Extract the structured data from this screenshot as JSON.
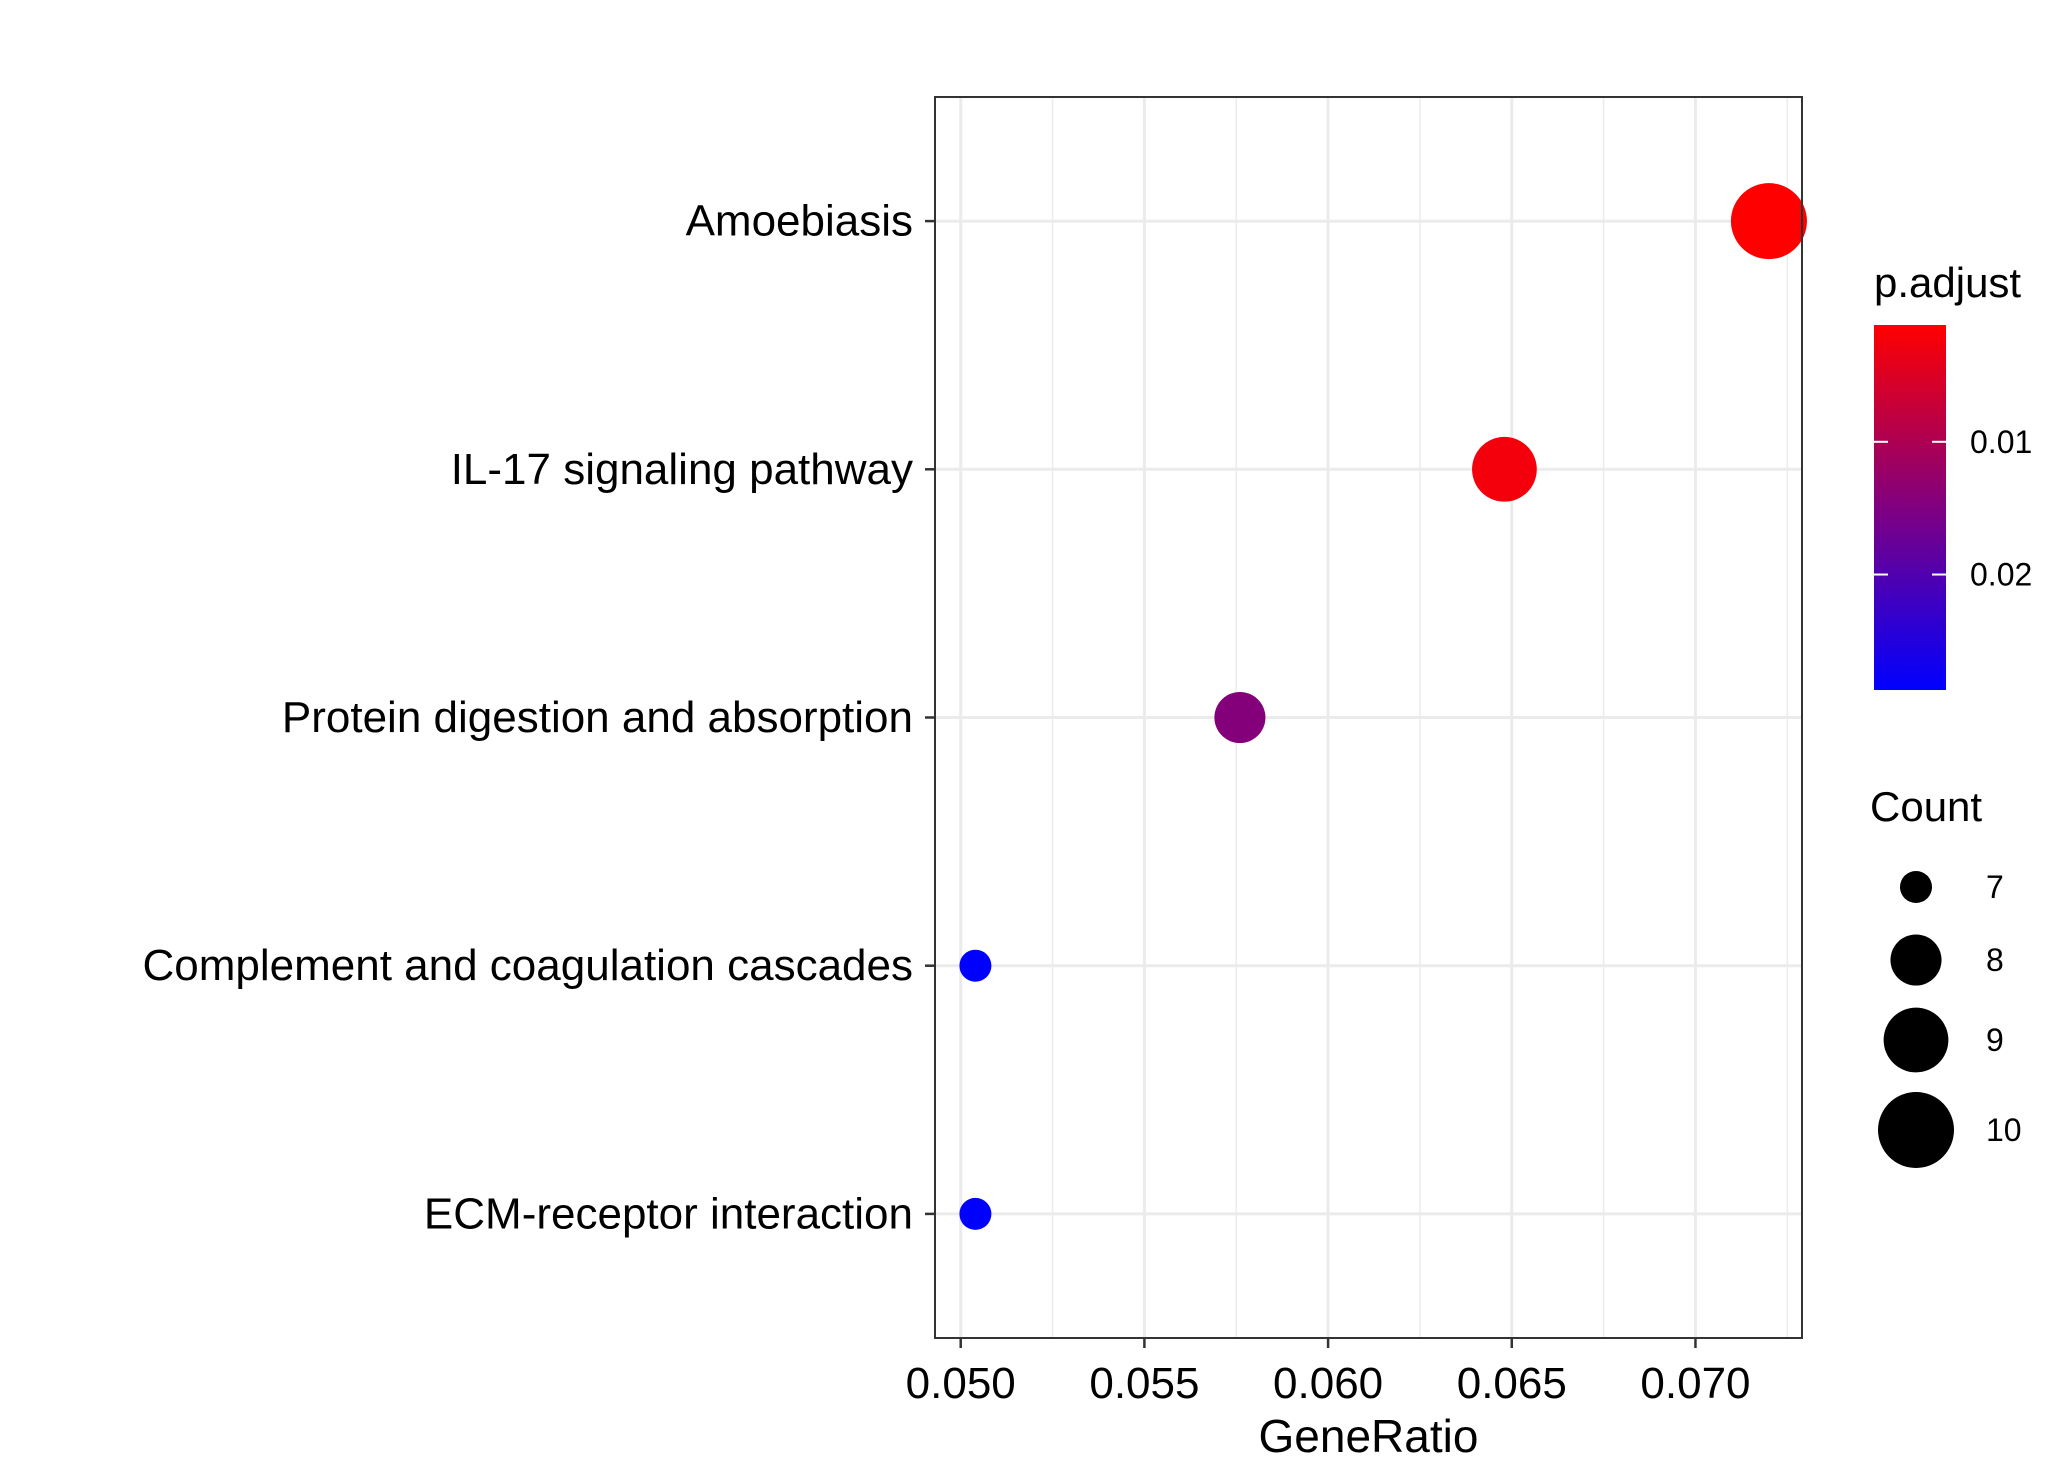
{
  "chart_data": {
    "type": "scatter",
    "title": "",
    "xlabel": "GeneRatio",
    "ylabel": "",
    "xlim": [
      0.0493,
      0.0729
    ],
    "x_ticks": [
      "0.050",
      "0.055",
      "0.060",
      "0.065",
      "0.070"
    ],
    "x_tick_values": [
      0.05,
      0.055,
      0.06,
      0.065,
      0.07
    ],
    "grid": true,
    "categories": [
      "Amoebiasis",
      "IL-17 signaling pathway",
      "Protein digestion and absorption",
      "Complement and coagulation cascades",
      "ECM-receptor interaction"
    ],
    "points": [
      {
        "category": "Amoebiasis",
        "x": 0.072,
        "count": 10,
        "p_adjust": 0.0012
      },
      {
        "category": "IL-17 signaling pathway",
        "x": 0.0648,
        "count": 9,
        "p_adjust": 0.0025
      },
      {
        "category": "Protein digestion and absorption",
        "x": 0.0576,
        "count": 8,
        "p_adjust": 0.0145
      },
      {
        "category": "Complement and coagulation cascades",
        "x": 0.0504,
        "count": 7,
        "p_adjust": 0.0287
      },
      {
        "category": "ECM-receptor interaction",
        "x": 0.0504,
        "count": 7,
        "p_adjust": 0.0287
      }
    ],
    "color_legend": {
      "title": "p.adjust",
      "range": [
        0.0012,
        0.0287
      ],
      "ticks": [
        "0.01",
        "0.02"
      ],
      "tick_values": [
        0.01,
        0.02
      ],
      "low_color": "#FF0000",
      "high_color": "#0000FF",
      "placement": "right"
    },
    "size_legend": {
      "title": "Count",
      "labels": [
        "7",
        "8",
        "9",
        "10"
      ],
      "values": [
        7,
        8,
        9,
        10
      ],
      "placement": "right"
    }
  }
}
